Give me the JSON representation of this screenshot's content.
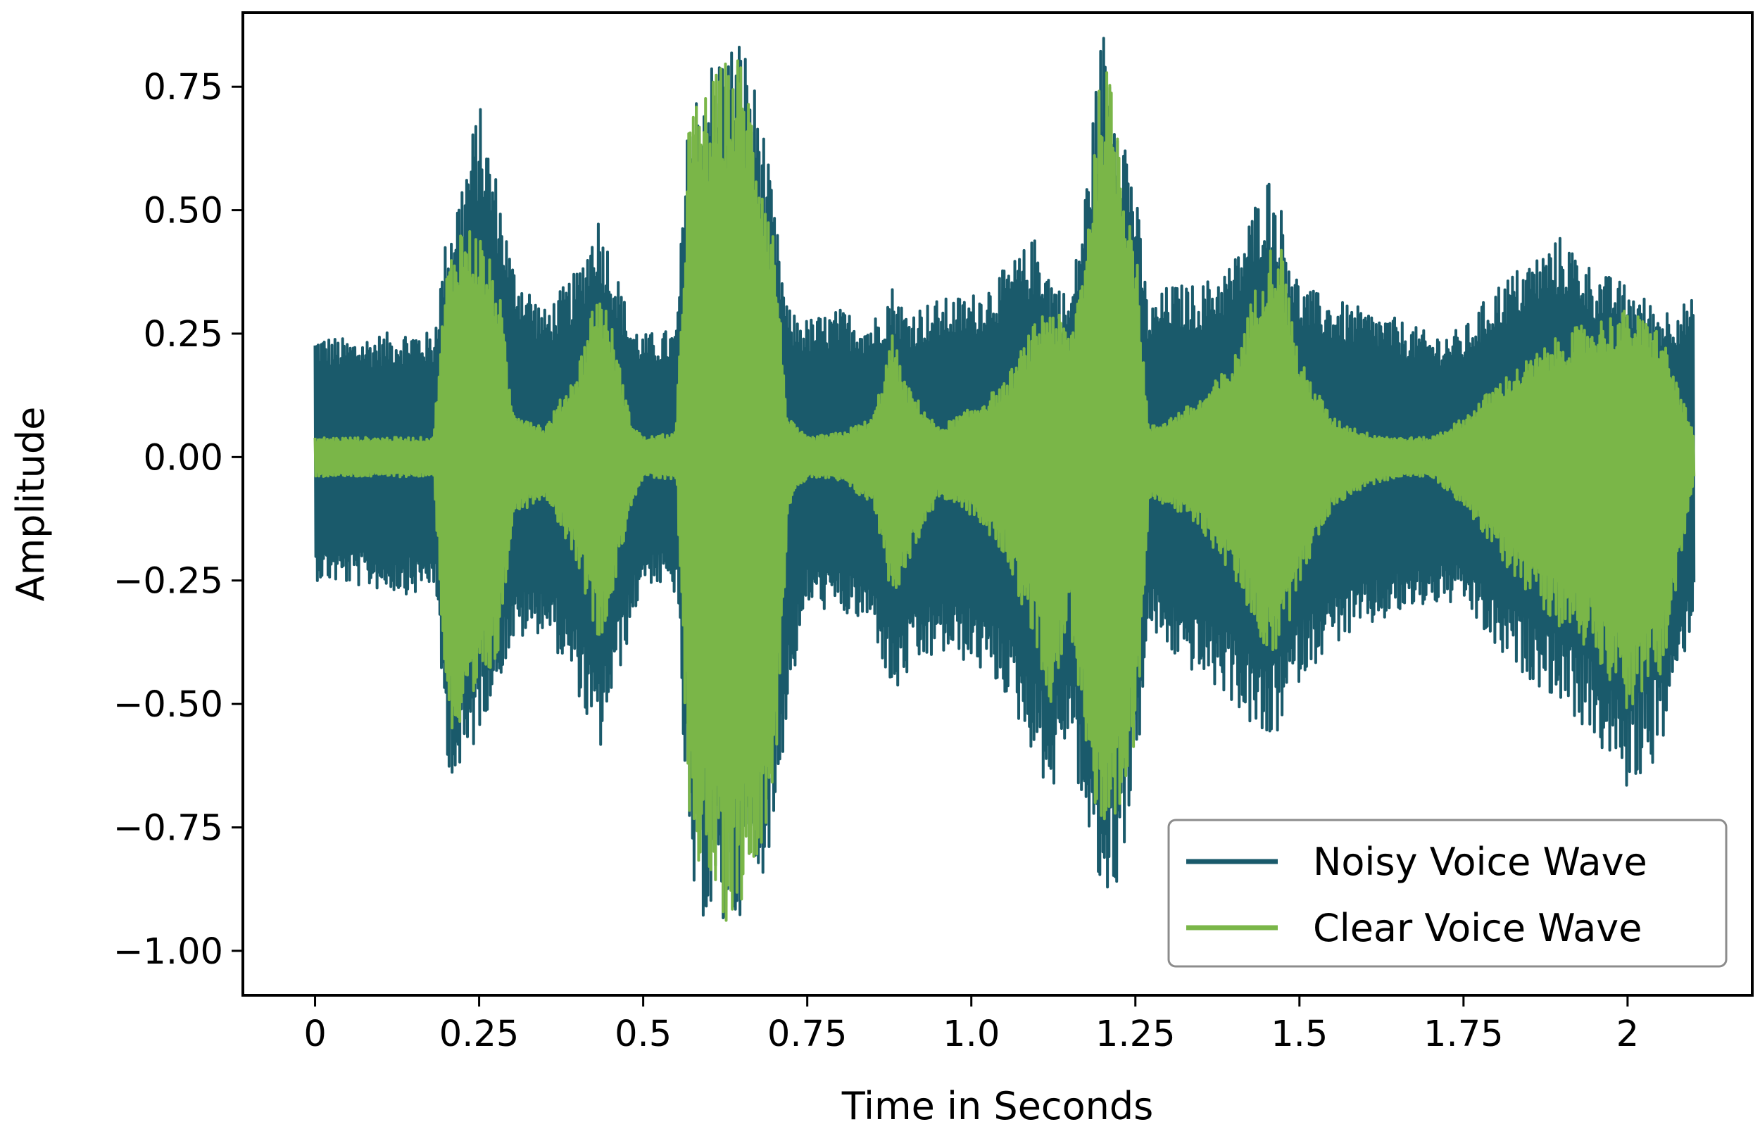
{
  "chart_data": {
    "type": "line",
    "title": "",
    "xlabel": "Time in Seconds",
    "ylabel": "Amplitude",
    "xlim": [
      -0.11,
      2.19
    ],
    "ylim": [
      -1.09,
      0.9
    ],
    "x_ticks": [
      {
        "value": 0,
        "label": "0"
      },
      {
        "value": 0.25,
        "label": "0.25"
      },
      {
        "value": 0.5,
        "label": "0.5"
      },
      {
        "value": 0.75,
        "label": "0.75"
      },
      {
        "value": 1.0,
        "label": "1.0"
      },
      {
        "value": 1.25,
        "label": "1.25"
      },
      {
        "value": 1.5,
        "label": "1.5"
      },
      {
        "value": 1.75,
        "label": "1.75"
      },
      {
        "value": 2.0,
        "label": "2"
      }
    ],
    "y_ticks": [
      {
        "value": 0.75,
        "label": "0.75"
      },
      {
        "value": 0.5,
        "label": "0.50"
      },
      {
        "value": 0.25,
        "label": "0.25"
      },
      {
        "value": 0.0,
        "label": "0.00"
      },
      {
        "value": -0.25,
        "label": "−0.25"
      },
      {
        "value": -0.5,
        "label": "−0.50"
      },
      {
        "value": -0.75,
        "label": "−0.75"
      },
      {
        "value": -1.0,
        "label": "−1.00"
      }
    ],
    "grid": false,
    "legend_position": "lower-right",
    "series": [
      {
        "name": "Noisy Voice Wave",
        "color": "#1a5a6b",
        "envelope": {
          "t": [
            0.0,
            0.05,
            0.1,
            0.15,
            0.18,
            0.2,
            0.22,
            0.25,
            0.28,
            0.3,
            0.35,
            0.4,
            0.43,
            0.45,
            0.48,
            0.5,
            0.55,
            0.57,
            0.6,
            0.62,
            0.65,
            0.68,
            0.7,
            0.72,
            0.75,
            0.8,
            0.85,
            0.88,
            0.9,
            0.95,
            1.0,
            1.05,
            1.1,
            1.12,
            1.15,
            1.17,
            1.2,
            1.22,
            1.25,
            1.27,
            1.3,
            1.35,
            1.4,
            1.45,
            1.47,
            1.5,
            1.55,
            1.6,
            1.65,
            1.7,
            1.75,
            1.8,
            1.85,
            1.9,
            1.95,
            2.0,
            2.05,
            2.1
          ],
          "upper": [
            0.25,
            0.24,
            0.25,
            0.26,
            0.25,
            0.45,
            0.55,
            0.72,
            0.55,
            0.4,
            0.3,
            0.38,
            0.5,
            0.42,
            0.28,
            0.25,
            0.26,
            0.72,
            0.8,
            0.83,
            0.86,
            0.7,
            0.5,
            0.3,
            0.28,
            0.3,
            0.28,
            0.35,
            0.3,
            0.32,
            0.33,
            0.38,
            0.45,
            0.38,
            0.32,
            0.5,
            0.88,
            0.78,
            0.55,
            0.3,
            0.35,
            0.35,
            0.4,
            0.58,
            0.52,
            0.35,
            0.32,
            0.3,
            0.28,
            0.25,
            0.26,
            0.35,
            0.4,
            0.45,
            0.38,
            0.35,
            0.3,
            0.32
          ],
          "lower": [
            -0.25,
            -0.26,
            -0.27,
            -0.28,
            -0.26,
            -0.62,
            -0.68,
            -0.55,
            -0.45,
            -0.38,
            -0.35,
            -0.48,
            -0.62,
            -0.5,
            -0.35,
            -0.25,
            -0.28,
            -0.9,
            -0.95,
            -0.98,
            -0.92,
            -0.85,
            -0.75,
            -0.5,
            -0.3,
            -0.32,
            -0.35,
            -0.5,
            -0.45,
            -0.4,
            -0.42,
            -0.48,
            -0.62,
            -0.7,
            -0.55,
            -0.75,
            -0.92,
            -0.88,
            -0.65,
            -0.35,
            -0.4,
            -0.45,
            -0.5,
            -0.6,
            -0.55,
            -0.45,
            -0.38,
            -0.35,
            -0.32,
            -0.3,
            -0.3,
            -0.4,
            -0.45,
            -0.5,
            -0.58,
            -0.68,
            -0.6,
            -0.32
          ]
        }
      },
      {
        "name": "Clear Voice Wave",
        "color": "#7ab648",
        "envelope": {
          "t": [
            0.0,
            0.05,
            0.1,
            0.15,
            0.18,
            0.2,
            0.22,
            0.25,
            0.28,
            0.3,
            0.35,
            0.4,
            0.43,
            0.45,
            0.48,
            0.5,
            0.55,
            0.57,
            0.6,
            0.62,
            0.65,
            0.68,
            0.7,
            0.72,
            0.75,
            0.8,
            0.85,
            0.88,
            0.9,
            0.95,
            1.0,
            1.05,
            1.1,
            1.12,
            1.15,
            1.17,
            1.2,
            1.22,
            1.25,
            1.27,
            1.3,
            1.35,
            1.4,
            1.45,
            1.47,
            1.5,
            1.55,
            1.6,
            1.65,
            1.7,
            1.75,
            1.8,
            1.85,
            1.9,
            1.95,
            2.0,
            2.05,
            2.1
          ],
          "upper": [
            0.04,
            0.04,
            0.04,
            0.04,
            0.04,
            0.38,
            0.48,
            0.46,
            0.35,
            0.1,
            0.06,
            0.18,
            0.35,
            0.28,
            0.08,
            0.04,
            0.05,
            0.7,
            0.75,
            0.8,
            0.82,
            0.62,
            0.45,
            0.08,
            0.04,
            0.05,
            0.08,
            0.25,
            0.15,
            0.06,
            0.1,
            0.15,
            0.28,
            0.32,
            0.25,
            0.4,
            0.82,
            0.72,
            0.45,
            0.06,
            0.08,
            0.12,
            0.2,
            0.42,
            0.45,
            0.2,
            0.08,
            0.05,
            0.04,
            0.04,
            0.08,
            0.15,
            0.2,
            0.25,
            0.28,
            0.3,
            0.26,
            0.05
          ],
          "lower": [
            -0.04,
            -0.04,
            -0.04,
            -0.04,
            -0.04,
            -0.55,
            -0.6,
            -0.5,
            -0.4,
            -0.12,
            -0.08,
            -0.22,
            -0.38,
            -0.3,
            -0.1,
            -0.04,
            -0.05,
            -0.78,
            -0.88,
            -0.95,
            -0.9,
            -0.78,
            -0.65,
            -0.1,
            -0.04,
            -0.05,
            -0.1,
            -0.3,
            -0.22,
            -0.08,
            -0.12,
            -0.2,
            -0.4,
            -0.5,
            -0.35,
            -0.55,
            -0.88,
            -0.8,
            -0.58,
            -0.08,
            -0.1,
            -0.15,
            -0.25,
            -0.4,
            -0.4,
            -0.25,
            -0.1,
            -0.06,
            -0.04,
            -0.04,
            -0.1,
            -0.2,
            -0.28,
            -0.35,
            -0.4,
            -0.52,
            -0.45,
            -0.05
          ]
        }
      }
    ]
  }
}
